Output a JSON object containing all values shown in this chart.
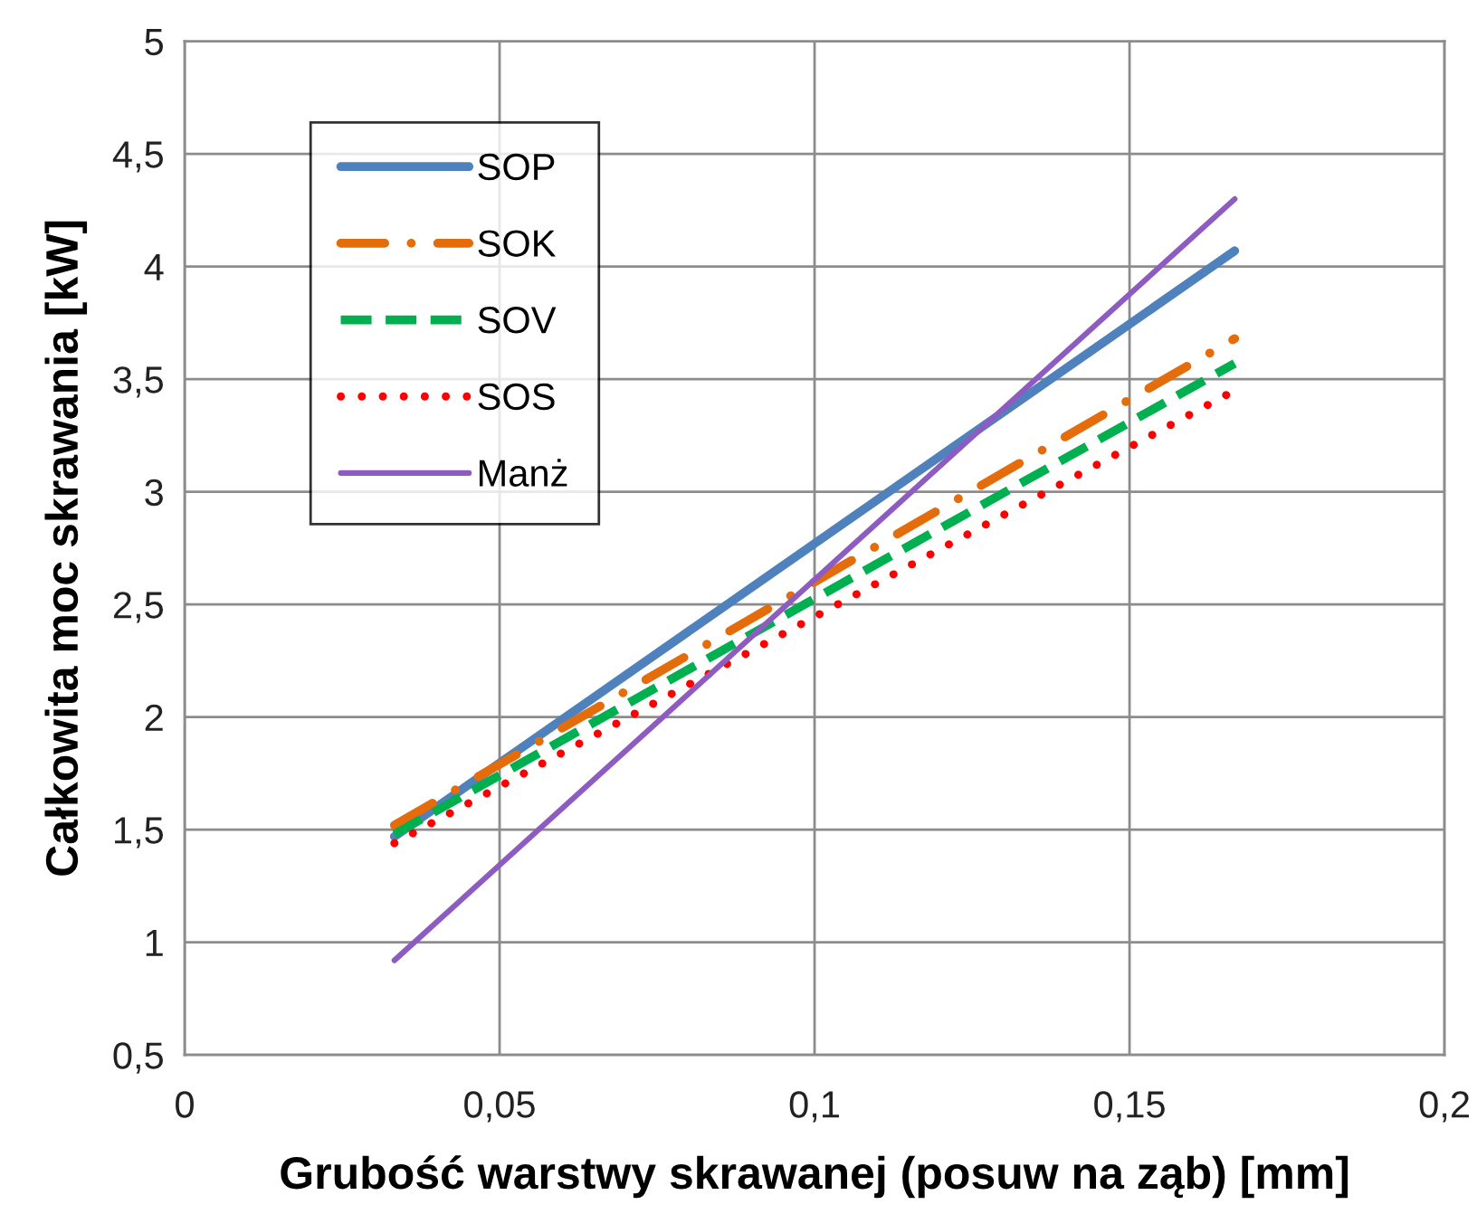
{
  "chart_data": {
    "type": "line",
    "xlabel": "Grubość warstwy skrawanej (posuw na ząb) [mm]",
    "ylabel": "Całkowita moc skrawania [kW]",
    "x": [
      0.0333,
      0.1667
    ],
    "series": [
      {
        "name": "SOP",
        "color": "#4f81bd",
        "line_style": "solid",
        "values": [
          1.47,
          4.07
        ]
      },
      {
        "name": "SOK",
        "color": "#e46c0a",
        "line_style": "dashdot",
        "values": [
          1.52,
          3.68
        ]
      },
      {
        "name": "SOV",
        "color": "#00b050",
        "line_style": "dashed",
        "values": [
          1.48,
          3.57
        ]
      },
      {
        "name": "SOS",
        "color": "#ff0000",
        "line_style": "dotted",
        "values": [
          1.44,
          3.45
        ]
      },
      {
        "name": "Manż",
        "color": "#8e5cc0",
        "line_style": "solid",
        "values": [
          0.92,
          4.3
        ]
      }
    ],
    "xlim": [
      0,
      0.2
    ],
    "xticks": [
      0,
      {
        "value": 0.05,
        "label": "0,05"
      },
      {
        "value": 0.1,
        "label": "0,1"
      },
      {
        "value": 0.15,
        "label": "0,15"
      },
      {
        "value": 0.2,
        "label": "0,2"
      }
    ],
    "ylim": [
      0.5,
      5
    ],
    "yticks": [
      {
        "value": 0.5,
        "label": "0,5"
      },
      1,
      {
        "value": 1.5,
        "label": "1,5"
      },
      2,
      {
        "value": 2.5,
        "label": "2,5"
      },
      3,
      {
        "value": 3.5,
        "label": "3,5"
      },
      4,
      {
        "value": 4.5,
        "label": "4,5"
      },
      5
    ],
    "grid": true,
    "legend": "top left"
  }
}
